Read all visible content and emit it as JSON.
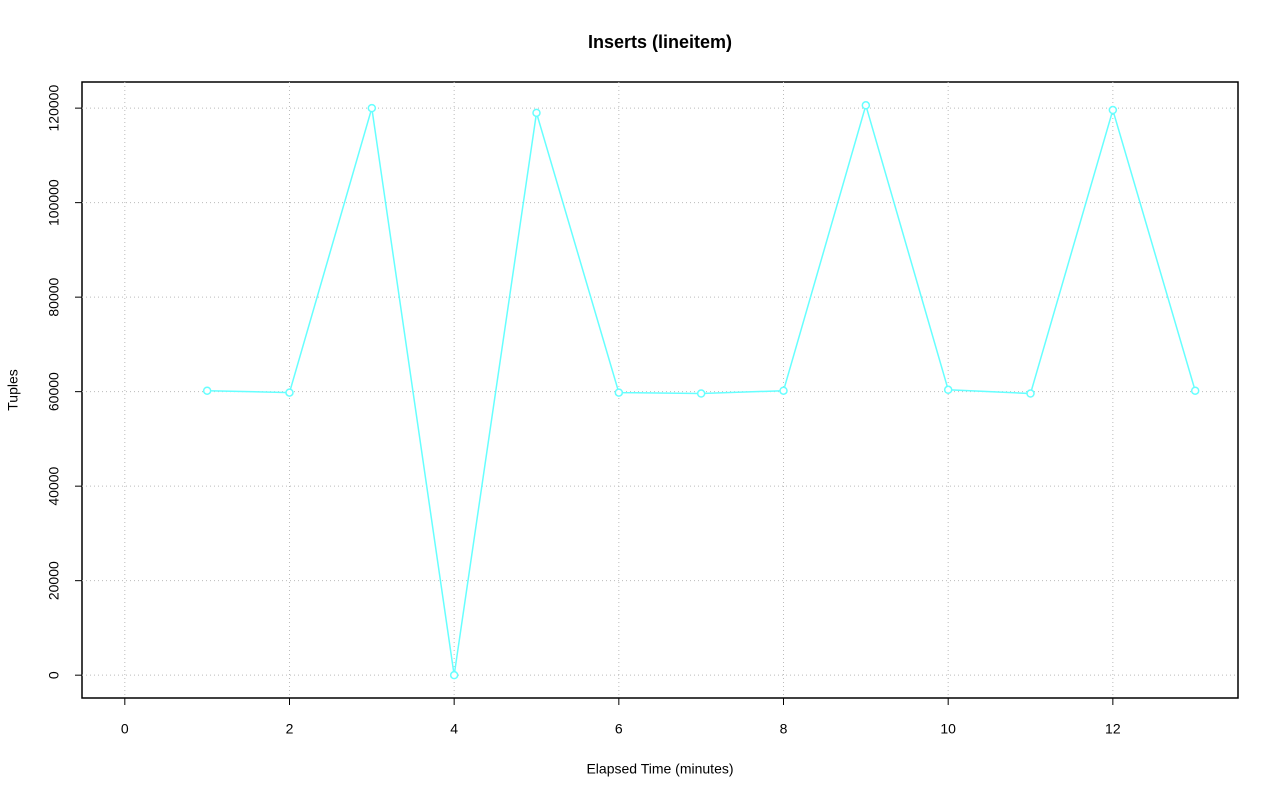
{
  "chart_data": {
    "type": "line",
    "title": "Inserts (lineitem)",
    "x_label": "Elapsed Time (minutes)",
    "y_label": "Tuples",
    "x": [
      1,
      2,
      3,
      4,
      5,
      6,
      7,
      8,
      9,
      10,
      11,
      12,
      13
    ],
    "values": [
      60200,
      59800,
      120000,
      0,
      119000,
      59800,
      59600,
      60200,
      120600,
      60400,
      59600,
      119600,
      60200
    ],
    "color": "#66ffff",
    "xlim": [
      -0.52,
      13.52
    ],
    "xticks": [
      0,
      2,
      4,
      6,
      8,
      10,
      12
    ],
    "ylim": [
      -4830,
      125530
    ],
    "yticks": [
      0,
      20000,
      40000,
      60000,
      80000,
      100000,
      120000
    ],
    "grid": true,
    "markers": true
  }
}
